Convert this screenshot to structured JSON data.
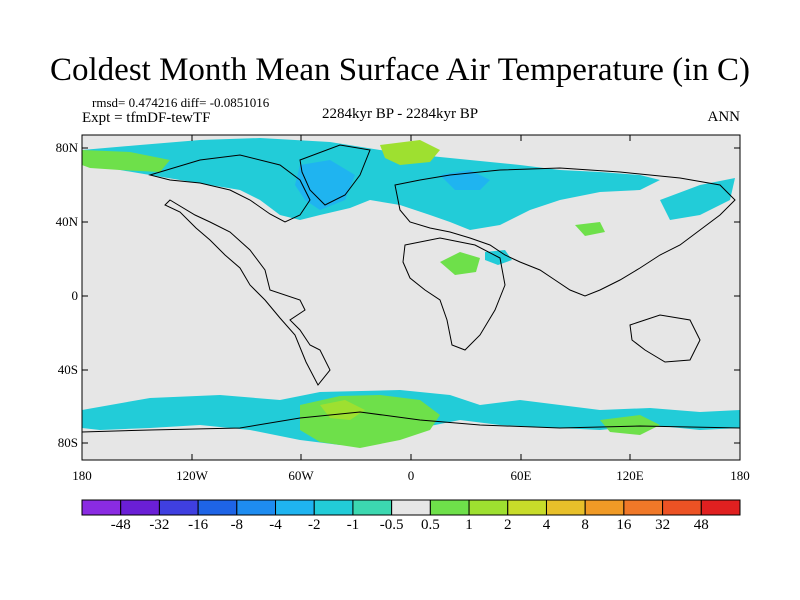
{
  "title": "Coldest Month Mean Surface Air Temperature (in C)",
  "stats": "rmsd= 0.474216 diff= -0.0851016",
  "experiment": "Expt = tfmDF-tewTF",
  "period": "2284kyr BP - 2284kyr BP",
  "season": "ANN",
  "lat_labels": [
    "80N",
    "40N",
    "0",
    "40S",
    "80S"
  ],
  "lon_labels": [
    "180",
    "120W",
    "60W",
    "0",
    "60E",
    "120E",
    "180"
  ],
  "colorbar": {
    "labels": [
      "-48",
      "-32",
      "-16",
      "-8",
      "-4",
      "-2",
      "-1",
      "-0.5",
      "0.5",
      "1",
      "2",
      "4",
      "8",
      "16",
      "32",
      "48"
    ],
    "colors": [
      "#8a2be2",
      "#6a1fd6",
      "#3f3fe0",
      "#1e64e6",
      "#1e8cf0",
      "#1fb4f0",
      "#22ccd8",
      "#3cd8b0",
      "#e6e6e6",
      "#6ee04a",
      "#9ee030",
      "#c8dc2a",
      "#e8c02a",
      "#f09a26",
      "#f07828",
      "#ec5224",
      "#e02020"
    ]
  },
  "colors": {
    "ocean_background": "#e6e6e6",
    "coastline": "#000000",
    "cool_anomaly": "#22ccd8",
    "strong_cool_anomaly": "#1fb4f0",
    "warm_anomaly": "#6ee04a",
    "mild_warm_anomaly": "#9ee030"
  }
}
